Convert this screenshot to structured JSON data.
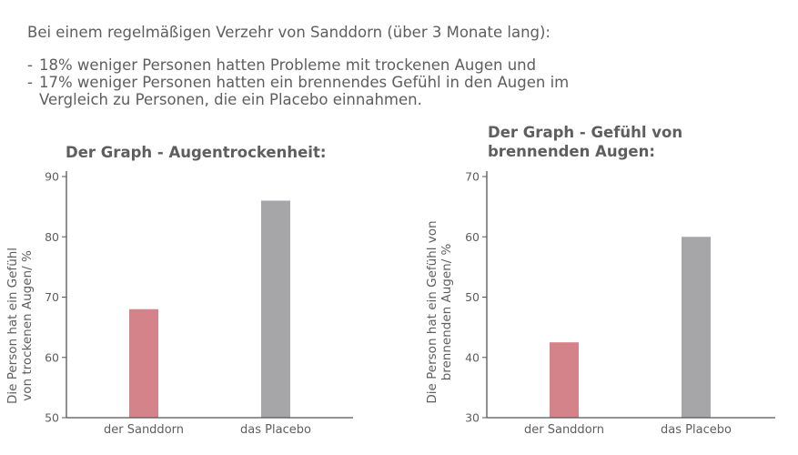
{
  "header": {
    "intro": "Bei einem regelmäßigen Verzehr von Sanddorn (über 3 Monate lang):",
    "bullets": [
      {
        "dash": "-",
        "text": "18% weniger Personen hatten Probleme mit trockenen Augen und"
      },
      {
        "dash": "-",
        "text": "17% weniger Personen hatten ein brennendes Gefühl in den Augen im Vergleich zu Personen, die ein Placebo einnahmen."
      }
    ]
  },
  "colors": {
    "sanddorn": "#d4838b",
    "placebo": "#a6a6a9",
    "axis": "#555555",
    "text": "#5e5e5e"
  },
  "chart_data": [
    {
      "type": "bar",
      "title": "Der Graph - Augentrockenheit:",
      "ylabel": "Die Person hat ein Gefühl von trockenen Augen/ %",
      "ylabel_lines": [
        "Die Person hat ein Gefühl",
        "von trockenen Augen/ %"
      ],
      "categories": [
        "der Sanddorn",
        "das Placebo"
      ],
      "values": [
        68,
        86
      ],
      "ylim": [
        50,
        90
      ],
      "yticks": [
        50,
        60,
        70,
        80,
        90
      ],
      "grid": false,
      "legend": "none"
    },
    {
      "type": "bar",
      "title": "Der Graph - Gefühl von brennenden Augen:",
      "ylabel": "Die Person hat ein Gefühl von brennenden Augen/ %",
      "ylabel_lines": [
        "Die Person hat ein Gefühl von",
        "brennenden Augen/ %"
      ],
      "categories": [
        "der Sanddorn",
        "das Placebo"
      ],
      "values": [
        42.5,
        60
      ],
      "ylim": [
        30,
        70
      ],
      "yticks": [
        30,
        40,
        50,
        60,
        70
      ],
      "grid": false,
      "legend": "none"
    }
  ]
}
